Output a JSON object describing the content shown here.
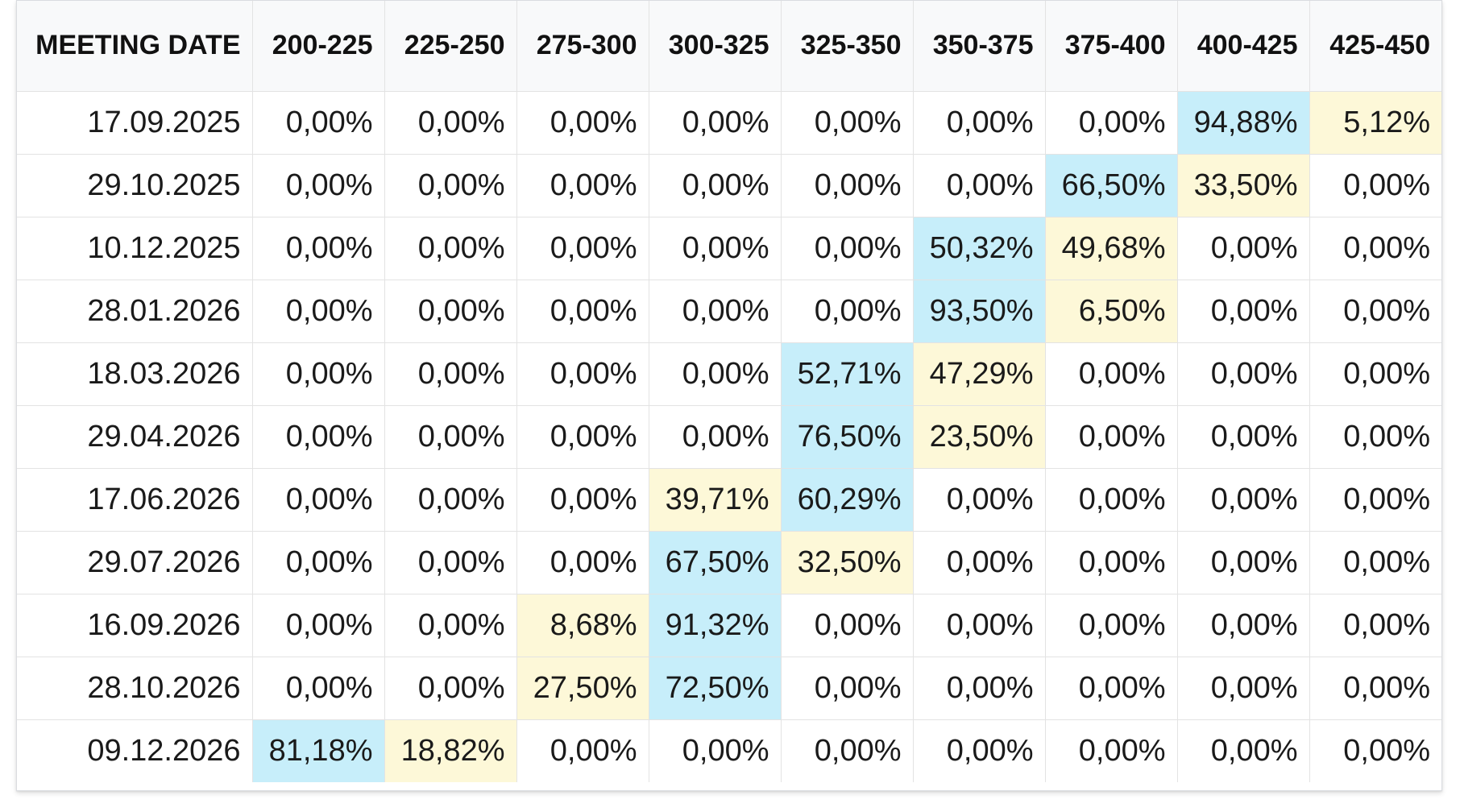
{
  "chart_data": {
    "type": "table",
    "columns": [
      "MEETING DATE",
      "200-225",
      "225-250",
      "275-300",
      "300-325",
      "325-350",
      "350-375",
      "375-400",
      "400-425",
      "425-450"
    ],
    "rows": [
      {
        "date": "17.09.2025",
        "values": [
          "0,00%",
          "0,00%",
          "0,00%",
          "0,00%",
          "0,00%",
          "0,00%",
          "0,00%",
          "94,88%",
          "5,12%"
        ],
        "highlight": [
          null,
          null,
          null,
          null,
          null,
          null,
          null,
          "blue",
          "yellow"
        ]
      },
      {
        "date": "29.10.2025",
        "values": [
          "0,00%",
          "0,00%",
          "0,00%",
          "0,00%",
          "0,00%",
          "0,00%",
          "66,50%",
          "33,50%",
          "0,00%"
        ],
        "highlight": [
          null,
          null,
          null,
          null,
          null,
          null,
          "blue",
          "yellow",
          null
        ]
      },
      {
        "date": "10.12.2025",
        "values": [
          "0,00%",
          "0,00%",
          "0,00%",
          "0,00%",
          "0,00%",
          "50,32%",
          "49,68%",
          "0,00%",
          "0,00%"
        ],
        "highlight": [
          null,
          null,
          null,
          null,
          null,
          "blue",
          "yellow",
          null,
          null
        ]
      },
      {
        "date": "28.01.2026",
        "values": [
          "0,00%",
          "0,00%",
          "0,00%",
          "0,00%",
          "0,00%",
          "93,50%",
          "6,50%",
          "0,00%",
          "0,00%"
        ],
        "highlight": [
          null,
          null,
          null,
          null,
          null,
          "blue",
          "yellow",
          null,
          null
        ]
      },
      {
        "date": "18.03.2026",
        "values": [
          "0,00%",
          "0,00%",
          "0,00%",
          "0,00%",
          "52,71%",
          "47,29%",
          "0,00%",
          "0,00%",
          "0,00%"
        ],
        "highlight": [
          null,
          null,
          null,
          null,
          "blue",
          "yellow",
          null,
          null,
          null
        ]
      },
      {
        "date": "29.04.2026",
        "values": [
          "0,00%",
          "0,00%",
          "0,00%",
          "0,00%",
          "76,50%",
          "23,50%",
          "0,00%",
          "0,00%",
          "0,00%"
        ],
        "highlight": [
          null,
          null,
          null,
          null,
          "blue",
          "yellow",
          null,
          null,
          null
        ]
      },
      {
        "date": "17.06.2026",
        "values": [
          "0,00%",
          "0,00%",
          "0,00%",
          "39,71%",
          "60,29%",
          "0,00%",
          "0,00%",
          "0,00%",
          "0,00%"
        ],
        "highlight": [
          null,
          null,
          null,
          "yellow",
          "blue",
          null,
          null,
          null,
          null
        ]
      },
      {
        "date": "29.07.2026",
        "values": [
          "0,00%",
          "0,00%",
          "0,00%",
          "67,50%",
          "32,50%",
          "0,00%",
          "0,00%",
          "0,00%",
          "0,00%"
        ],
        "highlight": [
          null,
          null,
          null,
          "blue",
          "yellow",
          null,
          null,
          null,
          null
        ]
      },
      {
        "date": "16.09.2026",
        "values": [
          "0,00%",
          "0,00%",
          "8,68%",
          "91,32%",
          "0,00%",
          "0,00%",
          "0,00%",
          "0,00%",
          "0,00%"
        ],
        "highlight": [
          null,
          null,
          "yellow",
          "blue",
          null,
          null,
          null,
          null,
          null
        ]
      },
      {
        "date": "28.10.2026",
        "values": [
          "0,00%",
          "0,00%",
          "27,50%",
          "72,50%",
          "0,00%",
          "0,00%",
          "0,00%",
          "0,00%",
          "0,00%"
        ],
        "highlight": [
          null,
          null,
          "yellow",
          "blue",
          null,
          null,
          null,
          null,
          null
        ]
      },
      {
        "date": "09.12.2026",
        "values": [
          "81,18%",
          "18,82%",
          "0,00%",
          "0,00%",
          "0,00%",
          "0,00%",
          "0,00%",
          "0,00%",
          "0,00%"
        ],
        "highlight": [
          "blue",
          "yellow",
          null,
          null,
          null,
          null,
          null,
          null,
          null
        ]
      }
    ]
  },
  "colors": {
    "highlight_blue": "#c7eefa",
    "highlight_yellow": "#fdf8d8",
    "header_background": "#f8f9fa",
    "grid_line": "#e3e3e3"
  }
}
